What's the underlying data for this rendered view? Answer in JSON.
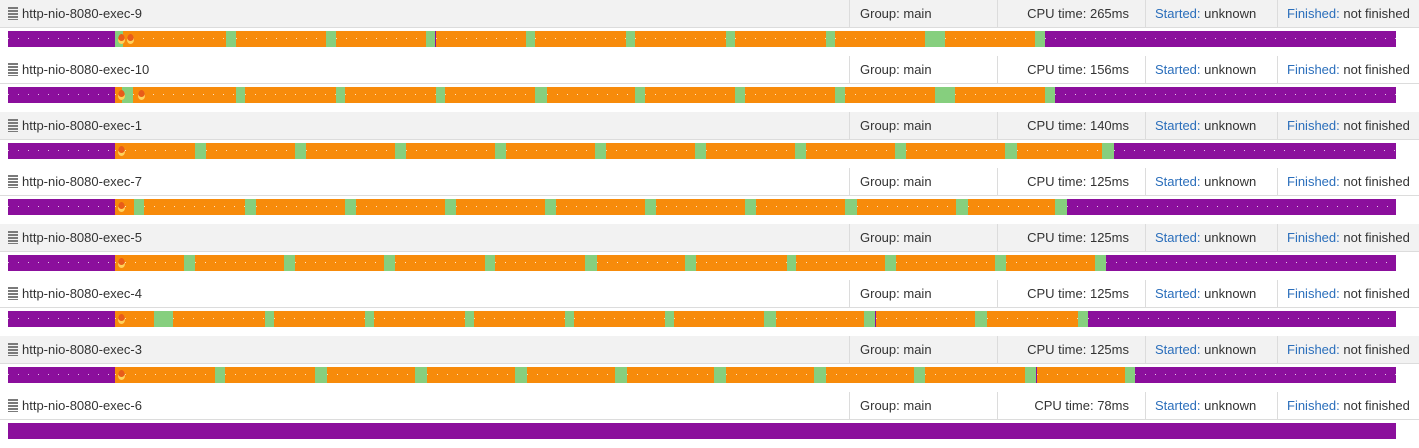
{
  "labels": {
    "group_prefix": "Group:",
    "cpu_prefix": "CPU time:",
    "started_label": "Started:",
    "finished_label": "Finished:"
  },
  "colors": {
    "running": "#f78b0b",
    "sleeping": "#8b0f9c",
    "waiting": "#86cf7e",
    "link": "#2a6ebb"
  },
  "threads": [
    {
      "name": "http-nio-8080-exec-9",
      "group": "main",
      "cpu_time": "265ms",
      "started": "unknown",
      "finished": "not finished",
      "flames": [
        0.079,
        0.086
      ],
      "segments": [
        {
          "s": 0.0,
          "e": 0.077,
          "state": "sleeping"
        },
        {
          "s": 0.077,
          "e": 0.083,
          "state": "waiting"
        },
        {
          "s": 0.083,
          "e": 0.157,
          "state": "running"
        },
        {
          "s": 0.157,
          "e": 0.164,
          "state": "waiting"
        },
        {
          "s": 0.164,
          "e": 0.229,
          "state": "running"
        },
        {
          "s": 0.229,
          "e": 0.236,
          "state": "waiting"
        },
        {
          "s": 0.236,
          "e": 0.301,
          "state": "running"
        },
        {
          "s": 0.301,
          "e": 0.308,
          "state": "waiting"
        },
        {
          "s": 0.308,
          "e": 0.373,
          "state": "running"
        },
        {
          "s": 0.373,
          "e": 0.38,
          "state": "waiting"
        },
        {
          "s": 0.38,
          "e": 0.445,
          "state": "running"
        },
        {
          "s": 0.445,
          "e": 0.452,
          "state": "waiting"
        },
        {
          "s": 0.452,
          "e": 0.517,
          "state": "running"
        },
        {
          "s": 0.517,
          "e": 0.524,
          "state": "waiting"
        },
        {
          "s": 0.524,
          "e": 0.589,
          "state": "running"
        },
        {
          "s": 0.589,
          "e": 0.596,
          "state": "waiting"
        },
        {
          "s": 0.596,
          "e": 0.661,
          "state": "running"
        },
        {
          "s": 0.661,
          "e": 0.675,
          "state": "waiting"
        },
        {
          "s": 0.675,
          "e": 0.74,
          "state": "running"
        },
        {
          "s": 0.74,
          "e": 0.747,
          "state": "waiting"
        },
        {
          "s": 0.747,
          "e": 1.0,
          "state": "sleeping"
        }
      ]
    },
    {
      "name": "http-nio-8080-exec-10",
      "group": "main",
      "cpu_time": "156ms",
      "started": "unknown",
      "finished": "not finished",
      "flames": [
        0.079,
        0.094
      ],
      "segments": [
        {
          "s": 0.0,
          "e": 0.077,
          "state": "sleeping"
        },
        {
          "s": 0.077,
          "e": 0.082,
          "state": "running"
        },
        {
          "s": 0.082,
          "e": 0.09,
          "state": "waiting"
        },
        {
          "s": 0.09,
          "e": 0.164,
          "state": "running"
        },
        {
          "s": 0.164,
          "e": 0.171,
          "state": "waiting"
        },
        {
          "s": 0.171,
          "e": 0.236,
          "state": "running"
        },
        {
          "s": 0.236,
          "e": 0.243,
          "state": "waiting"
        },
        {
          "s": 0.243,
          "e": 0.308,
          "state": "running"
        },
        {
          "s": 0.308,
          "e": 0.315,
          "state": "waiting"
        },
        {
          "s": 0.315,
          "e": 0.38,
          "state": "running"
        },
        {
          "s": 0.38,
          "e": 0.388,
          "state": "waiting"
        },
        {
          "s": 0.388,
          "e": 0.452,
          "state": "running"
        },
        {
          "s": 0.452,
          "e": 0.459,
          "state": "waiting"
        },
        {
          "s": 0.459,
          "e": 0.524,
          "state": "running"
        },
        {
          "s": 0.524,
          "e": 0.531,
          "state": "waiting"
        },
        {
          "s": 0.531,
          "e": 0.596,
          "state": "running"
        },
        {
          "s": 0.596,
          "e": 0.603,
          "state": "waiting"
        },
        {
          "s": 0.603,
          "e": 0.668,
          "state": "running"
        },
        {
          "s": 0.668,
          "e": 0.682,
          "state": "waiting"
        },
        {
          "s": 0.682,
          "e": 0.747,
          "state": "running"
        },
        {
          "s": 0.747,
          "e": 0.754,
          "state": "waiting"
        },
        {
          "s": 0.754,
          "e": 1.0,
          "state": "sleeping"
        }
      ]
    },
    {
      "name": "http-nio-8080-exec-1",
      "group": "main",
      "cpu_time": "140ms",
      "started": "unknown",
      "finished": "not finished",
      "flames": [
        0.079
      ],
      "segments": [
        {
          "s": 0.0,
          "e": 0.077,
          "state": "sleeping"
        },
        {
          "s": 0.077,
          "e": 0.135,
          "state": "running"
        },
        {
          "s": 0.135,
          "e": 0.143,
          "state": "waiting"
        },
        {
          "s": 0.143,
          "e": 0.207,
          "state": "running"
        },
        {
          "s": 0.207,
          "e": 0.215,
          "state": "waiting"
        },
        {
          "s": 0.215,
          "e": 0.279,
          "state": "running"
        },
        {
          "s": 0.279,
          "e": 0.287,
          "state": "waiting"
        },
        {
          "s": 0.287,
          "e": 0.351,
          "state": "running"
        },
        {
          "s": 0.351,
          "e": 0.359,
          "state": "waiting"
        },
        {
          "s": 0.359,
          "e": 0.423,
          "state": "running"
        },
        {
          "s": 0.423,
          "e": 0.431,
          "state": "waiting"
        },
        {
          "s": 0.431,
          "e": 0.495,
          "state": "running"
        },
        {
          "s": 0.495,
          "e": 0.503,
          "state": "waiting"
        },
        {
          "s": 0.503,
          "e": 0.567,
          "state": "running"
        },
        {
          "s": 0.567,
          "e": 0.575,
          "state": "waiting"
        },
        {
          "s": 0.575,
          "e": 0.639,
          "state": "running"
        },
        {
          "s": 0.639,
          "e": 0.647,
          "state": "waiting"
        },
        {
          "s": 0.647,
          "e": 0.718,
          "state": "running"
        },
        {
          "s": 0.718,
          "e": 0.727,
          "state": "waiting"
        },
        {
          "s": 0.727,
          "e": 0.788,
          "state": "running"
        },
        {
          "s": 0.788,
          "e": 0.797,
          "state": "waiting"
        },
        {
          "s": 0.797,
          "e": 1.0,
          "state": "sleeping"
        }
      ]
    },
    {
      "name": "http-nio-8080-exec-7",
      "group": "main",
      "cpu_time": "125ms",
      "started": "unknown",
      "finished": "not finished",
      "flames": [
        0.079
      ],
      "segments": [
        {
          "s": 0.0,
          "e": 0.077,
          "state": "sleeping"
        },
        {
          "s": 0.077,
          "e": 0.091,
          "state": "running"
        },
        {
          "s": 0.091,
          "e": 0.098,
          "state": "waiting"
        },
        {
          "s": 0.098,
          "e": 0.171,
          "state": "running"
        },
        {
          "s": 0.171,
          "e": 0.179,
          "state": "waiting"
        },
        {
          "s": 0.179,
          "e": 0.243,
          "state": "running"
        },
        {
          "s": 0.243,
          "e": 0.251,
          "state": "waiting"
        },
        {
          "s": 0.251,
          "e": 0.315,
          "state": "running"
        },
        {
          "s": 0.315,
          "e": 0.323,
          "state": "waiting"
        },
        {
          "s": 0.323,
          "e": 0.387,
          "state": "running"
        },
        {
          "s": 0.387,
          "e": 0.395,
          "state": "waiting"
        },
        {
          "s": 0.395,
          "e": 0.459,
          "state": "running"
        },
        {
          "s": 0.459,
          "e": 0.467,
          "state": "waiting"
        },
        {
          "s": 0.467,
          "e": 0.531,
          "state": "running"
        },
        {
          "s": 0.531,
          "e": 0.539,
          "state": "waiting"
        },
        {
          "s": 0.539,
          "e": 0.603,
          "state": "running"
        },
        {
          "s": 0.603,
          "e": 0.612,
          "state": "waiting"
        },
        {
          "s": 0.612,
          "e": 0.683,
          "state": "running"
        },
        {
          "s": 0.683,
          "e": 0.692,
          "state": "waiting"
        },
        {
          "s": 0.692,
          "e": 0.754,
          "state": "running"
        },
        {
          "s": 0.754,
          "e": 0.763,
          "state": "waiting"
        },
        {
          "s": 0.763,
          "e": 1.0,
          "state": "sleeping"
        }
      ]
    },
    {
      "name": "http-nio-8080-exec-5",
      "group": "main",
      "cpu_time": "125ms",
      "started": "unknown",
      "finished": "not finished",
      "flames": [
        0.079
      ],
      "segments": [
        {
          "s": 0.0,
          "e": 0.077,
          "state": "sleeping"
        },
        {
          "s": 0.077,
          "e": 0.127,
          "state": "running"
        },
        {
          "s": 0.127,
          "e": 0.135,
          "state": "waiting"
        },
        {
          "s": 0.135,
          "e": 0.199,
          "state": "running"
        },
        {
          "s": 0.199,
          "e": 0.207,
          "state": "waiting"
        },
        {
          "s": 0.207,
          "e": 0.271,
          "state": "running"
        },
        {
          "s": 0.271,
          "e": 0.279,
          "state": "waiting"
        },
        {
          "s": 0.279,
          "e": 0.344,
          "state": "running"
        },
        {
          "s": 0.344,
          "e": 0.351,
          "state": "waiting"
        },
        {
          "s": 0.351,
          "e": 0.416,
          "state": "running"
        },
        {
          "s": 0.416,
          "e": 0.424,
          "state": "waiting"
        },
        {
          "s": 0.424,
          "e": 0.488,
          "state": "running"
        },
        {
          "s": 0.488,
          "e": 0.496,
          "state": "waiting"
        },
        {
          "s": 0.496,
          "e": 0.561,
          "state": "running"
        },
        {
          "s": 0.561,
          "e": 0.568,
          "state": "waiting"
        },
        {
          "s": 0.568,
          "e": 0.632,
          "state": "running"
        },
        {
          "s": 0.632,
          "e": 0.64,
          "state": "waiting"
        },
        {
          "s": 0.64,
          "e": 0.711,
          "state": "running"
        },
        {
          "s": 0.711,
          "e": 0.719,
          "state": "waiting"
        },
        {
          "s": 0.719,
          "e": 0.783,
          "state": "running"
        },
        {
          "s": 0.783,
          "e": 0.791,
          "state": "waiting"
        },
        {
          "s": 0.791,
          "e": 1.0,
          "state": "sleeping"
        }
      ]
    },
    {
      "name": "http-nio-8080-exec-4",
      "group": "main",
      "cpu_time": "125ms",
      "started": "unknown",
      "finished": "not finished",
      "flames": [
        0.079
      ],
      "segments": [
        {
          "s": 0.0,
          "e": 0.077,
          "state": "sleeping"
        },
        {
          "s": 0.077,
          "e": 0.105,
          "state": "running"
        },
        {
          "s": 0.105,
          "e": 0.119,
          "state": "waiting"
        },
        {
          "s": 0.119,
          "e": 0.185,
          "state": "running"
        },
        {
          "s": 0.185,
          "e": 0.192,
          "state": "waiting"
        },
        {
          "s": 0.192,
          "e": 0.257,
          "state": "running"
        },
        {
          "s": 0.257,
          "e": 0.264,
          "state": "waiting"
        },
        {
          "s": 0.264,
          "e": 0.329,
          "state": "running"
        },
        {
          "s": 0.329,
          "e": 0.336,
          "state": "waiting"
        },
        {
          "s": 0.336,
          "e": 0.401,
          "state": "running"
        },
        {
          "s": 0.401,
          "e": 0.408,
          "state": "waiting"
        },
        {
          "s": 0.408,
          "e": 0.473,
          "state": "running"
        },
        {
          "s": 0.473,
          "e": 0.48,
          "state": "waiting"
        },
        {
          "s": 0.48,
          "e": 0.545,
          "state": "running"
        },
        {
          "s": 0.545,
          "e": 0.553,
          "state": "waiting"
        },
        {
          "s": 0.553,
          "e": 0.617,
          "state": "running"
        },
        {
          "s": 0.617,
          "e": 0.625,
          "state": "waiting"
        },
        {
          "s": 0.625,
          "e": 0.697,
          "state": "running"
        },
        {
          "s": 0.697,
          "e": 0.705,
          "state": "waiting"
        },
        {
          "s": 0.705,
          "e": 0.771,
          "state": "running"
        },
        {
          "s": 0.771,
          "e": 0.778,
          "state": "waiting"
        },
        {
          "s": 0.778,
          "e": 1.0,
          "state": "sleeping"
        }
      ]
    },
    {
      "name": "http-nio-8080-exec-3",
      "group": "main",
      "cpu_time": "125ms",
      "started": "unknown",
      "finished": "not finished",
      "flames": [
        0.079
      ],
      "segments": [
        {
          "s": 0.0,
          "e": 0.077,
          "state": "sleeping"
        },
        {
          "s": 0.077,
          "e": 0.149,
          "state": "running"
        },
        {
          "s": 0.149,
          "e": 0.156,
          "state": "waiting"
        },
        {
          "s": 0.156,
          "e": 0.221,
          "state": "running"
        },
        {
          "s": 0.221,
          "e": 0.23,
          "state": "waiting"
        },
        {
          "s": 0.23,
          "e": 0.293,
          "state": "running"
        },
        {
          "s": 0.293,
          "e": 0.302,
          "state": "waiting"
        },
        {
          "s": 0.302,
          "e": 0.365,
          "state": "running"
        },
        {
          "s": 0.365,
          "e": 0.374,
          "state": "waiting"
        },
        {
          "s": 0.374,
          "e": 0.437,
          "state": "running"
        },
        {
          "s": 0.437,
          "e": 0.446,
          "state": "waiting"
        },
        {
          "s": 0.446,
          "e": 0.509,
          "state": "running"
        },
        {
          "s": 0.509,
          "e": 0.517,
          "state": "waiting"
        },
        {
          "s": 0.517,
          "e": 0.581,
          "state": "running"
        },
        {
          "s": 0.581,
          "e": 0.589,
          "state": "waiting"
        },
        {
          "s": 0.589,
          "e": 0.653,
          "state": "running"
        },
        {
          "s": 0.653,
          "e": 0.661,
          "state": "waiting"
        },
        {
          "s": 0.661,
          "e": 0.733,
          "state": "running"
        },
        {
          "s": 0.733,
          "e": 0.741,
          "state": "waiting"
        },
        {
          "s": 0.741,
          "e": 0.805,
          "state": "running"
        },
        {
          "s": 0.805,
          "e": 0.812,
          "state": "waiting"
        },
        {
          "s": 0.812,
          "e": 1.0,
          "state": "sleeping"
        }
      ]
    },
    {
      "name": "http-nio-8080-exec-6",
      "group": "main",
      "cpu_time": "78ms",
      "started": "unknown",
      "finished": "not finished",
      "flames": [],
      "segments": []
    }
  ]
}
